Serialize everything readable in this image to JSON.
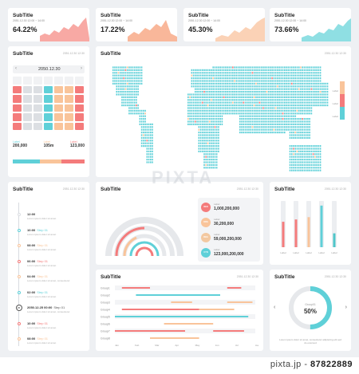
{
  "colors": {
    "red": "#f47b7b",
    "orange": "#f9c49a",
    "cyan": "#5fd0d8",
    "teal": "#4fc6c9",
    "grey": "#dcdfe3"
  },
  "kpis": [
    {
      "title": "SubTitle",
      "date": "2051.12.30 12:00 ~ 14:00",
      "value": "64.22%"
    },
    {
      "title": "SubTitle",
      "date": "2051.12.30 12:00 ~ 14:00",
      "value": "17.22%"
    },
    {
      "title": "SubTitle",
      "date": "2051.12.30 12:00 ~ 14:00",
      "value": "45.30%"
    },
    {
      "title": "SubTitle",
      "date": "2051.12.30 12:00 ~ 14:00",
      "value": "73.66%"
    }
  ],
  "calendar": {
    "title": "SubTitle",
    "date": "2051.12.30 12:30",
    "month": "2050.12.30",
    "stats": [
      {
        "label": "Label",
        "value": "200,000"
      },
      {
        "label": "Label",
        "value": "105m"
      },
      {
        "label": "Label",
        "value": "123,000"
      }
    ]
  },
  "map": {
    "title": "SubTitle",
    "date": "2051.12.30 12:30",
    "legend": [
      "Label",
      "Label",
      "Label"
    ]
  },
  "timeline": {
    "title": "SubTitle",
    "date": "2051.12.30 12:30",
    "items": [
      {
        "time": "12:00",
        "step": "",
        "desc": "Lorem ipsum dolor sit amet"
      },
      {
        "time": "10:00",
        "step": "Step 01",
        "desc": "Lorem ipsum dolor sit amet"
      },
      {
        "time": "08:00",
        "step": "Step 01",
        "desc": "Lorem ipsum dolor sit amet"
      },
      {
        "time": "06:00",
        "step": "Step 01",
        "desc": "Lorem ipsum dolor sit amet"
      },
      {
        "time": "04:00",
        "step": "Step 01",
        "desc": "Lorem ipsum dolor sit amet, consectetur"
      },
      {
        "time": "02:00",
        "step": "Step 01",
        "desc": "Lorem ipsum dolor sit amet"
      },
      {
        "time": "2050.12.25 00:00",
        "step": "Step 01",
        "desc": "Lorem ipsum dolor sit amet, consectetur"
      },
      {
        "time": "10:00",
        "step": "Step 01",
        "desc": "Lorem ipsum dolor sit amet"
      },
      {
        "time": "08:00",
        "step": "Step 01",
        "desc": "Lorem ipsum dolor sit amet"
      }
    ],
    "marker": "25"
  },
  "radial": {
    "title": "SubTitle",
    "date": "2051.12.30 12:30",
    "rows": [
      {
        "icon": "RED",
        "label": "Label",
        "value": "1,000,200,000"
      },
      {
        "icon": "ORG",
        "label": "Label",
        "value": "30,200,000"
      },
      {
        "icon": "BEG",
        "label": "Label",
        "value": "59,000,200,000"
      },
      {
        "icon": "CYN",
        "label": "Label",
        "value": "123,000,200,000"
      }
    ]
  },
  "bars": {
    "title": "SubTitle",
    "date": "2051.12.30 12:30",
    "chart_data": {
      "type": "bar",
      "categories": [
        "Label",
        "Label",
        "Label",
        "Label",
        "Label"
      ],
      "values": [
        55,
        60,
        65,
        90,
        30
      ],
      "ylim": [
        0,
        100
      ]
    }
  },
  "gantt": {
    "title": "SubTitle",
    "date": "2051.12.30 12:30",
    "rows": [
      "Group1",
      "Group2",
      "Group3",
      "Group4",
      "Group5",
      "Group6",
      "Group7",
      "Group8"
    ],
    "months": [
      "Jan",
      "Feb",
      "Mar",
      "Apr",
      "May",
      "Jun",
      "Jul",
      "Aug"
    ]
  },
  "donut": {
    "title": "SubTitle",
    "date": "2051.12.30 12:30",
    "label": "Group01",
    "value": "50%",
    "progress": 0.5,
    "desc": "Lorem ipsum dolor sit amet, consectetur adipiscing elit sed do eiusmod"
  },
  "watermark": {
    "brand": "PIXTA",
    "site": "pixta.jp - ",
    "id": "87822889"
  }
}
